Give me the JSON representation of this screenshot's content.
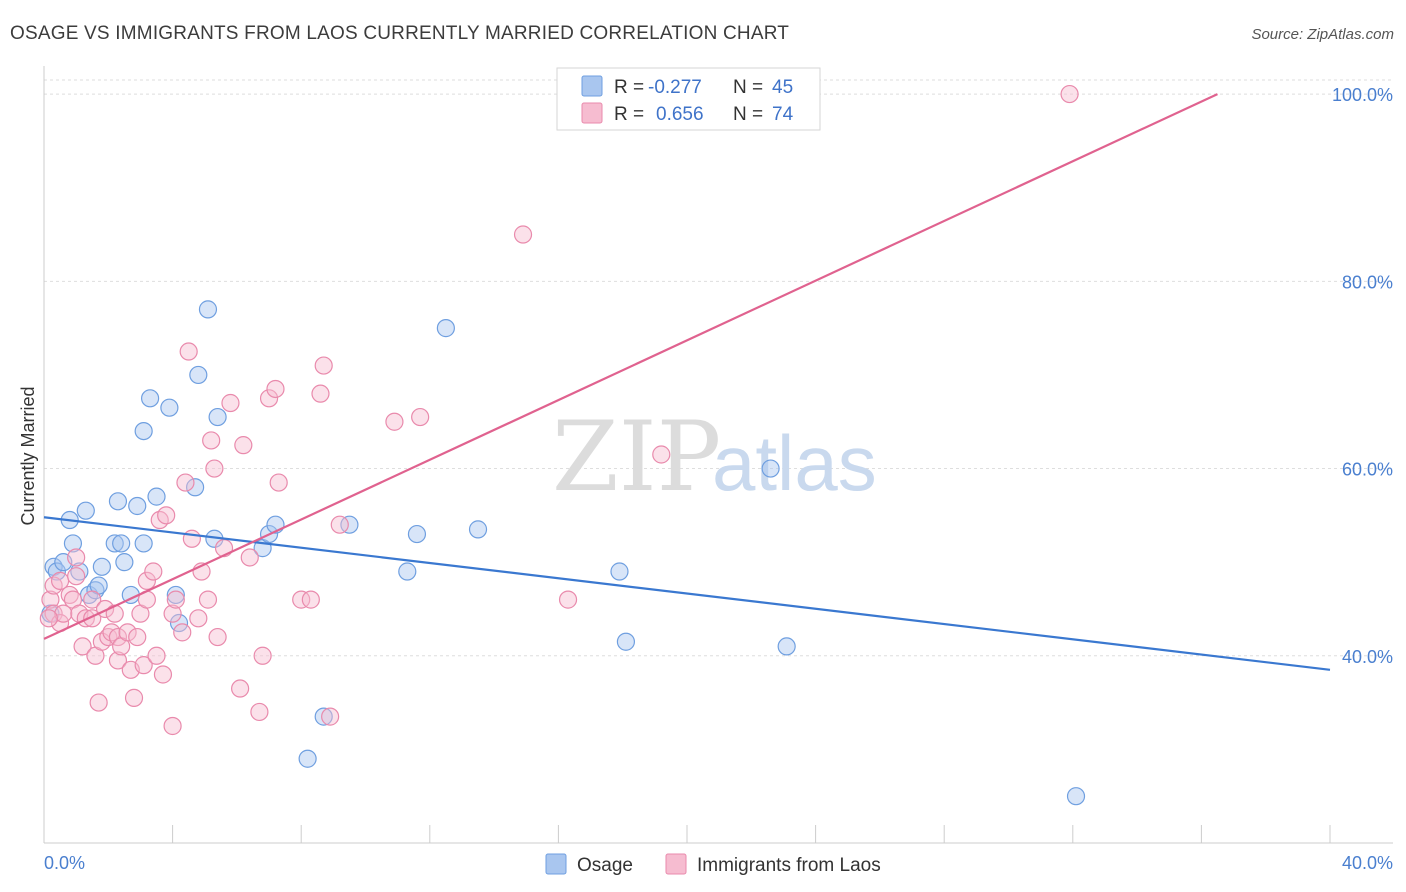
{
  "chart_data": {
    "type": "scatter",
    "title": "OSAGE VS IMMIGRANTS FROM LAOS CURRENTLY MARRIED CORRELATION CHART",
    "source": "Source: ZipAtlas.com",
    "ylabel": "Currently Married",
    "xlim": [
      0,
      40
    ],
    "ylim": [
      20,
      103
    ],
    "x_tick_labels": [
      "0.0%",
      "40.0%"
    ],
    "y_ticks": [
      {
        "value": 40,
        "label": "40.0%"
      },
      {
        "value": 60,
        "label": "60.0%"
      },
      {
        "value": 80,
        "label": "80.0%"
      },
      {
        "value": 100,
        "label": "100.0%"
      }
    ],
    "grid": true,
    "legend_position": "top-center",
    "watermark": {
      "zip": "ZIP",
      "atlas": "atlas"
    },
    "series": [
      {
        "name": "Osage",
        "color": "#a9c6ef",
        "edge_color": "#6f9fe0",
        "line_color": "#3a78d0",
        "stats": {
          "r_label": "R = ",
          "r_value": "-0.277",
          "n_label": "N = ",
          "n_value": "45"
        },
        "trend": {
          "x0": 0,
          "y0": 54.8,
          "x1": 40,
          "y1": 38.5
        },
        "points": [
          [
            0.2,
            44.5
          ],
          [
            0.3,
            49.5
          ],
          [
            0.4,
            49.0
          ],
          [
            0.6,
            50.0
          ],
          [
            0.8,
            54.5
          ],
          [
            0.9,
            52.0
          ],
          [
            1.1,
            49.0
          ],
          [
            1.3,
            55.5
          ],
          [
            1.4,
            46.5
          ],
          [
            1.6,
            47.0
          ],
          [
            1.7,
            47.5
          ],
          [
            1.8,
            49.5
          ],
          [
            2.2,
            52.0
          ],
          [
            2.3,
            56.5
          ],
          [
            2.4,
            52.0
          ],
          [
            2.5,
            50.0
          ],
          [
            2.7,
            46.5
          ],
          [
            2.9,
            56.0
          ],
          [
            3.1,
            64.0
          ],
          [
            3.1,
            52.0
          ],
          [
            3.3,
            67.5
          ],
          [
            3.5,
            57.0
          ],
          [
            3.9,
            66.5
          ],
          [
            4.1,
            46.5
          ],
          [
            4.2,
            43.5
          ],
          [
            4.7,
            58.0
          ],
          [
            4.8,
            70.0
          ],
          [
            5.1,
            77.0
          ],
          [
            5.3,
            52.5
          ],
          [
            5.4,
            65.5
          ],
          [
            6.8,
            51.5
          ],
          [
            7.0,
            53.0
          ],
          [
            7.2,
            54.0
          ],
          [
            8.2,
            29.0
          ],
          [
            8.7,
            33.5
          ],
          [
            9.5,
            54.0
          ],
          [
            11.3,
            49.0
          ],
          [
            11.6,
            53.0
          ],
          [
            12.5,
            75.0
          ],
          [
            13.5,
            53.5
          ],
          [
            17.9,
            49.0
          ],
          [
            18.1,
            41.5
          ],
          [
            22.6,
            60.0
          ],
          [
            23.1,
            41.0
          ],
          [
            32.1,
            25.0
          ]
        ]
      },
      {
        "name": "Immigrants from Laos",
        "color": "#f6bcd0",
        "edge_color": "#e98aac",
        "line_color": "#e0628f",
        "stats": {
          "r_label": "R = ",
          "r_value": "0.656",
          "n_label": "N = ",
          "n_value": "74"
        },
        "trend": {
          "x0": 0,
          "y0": 41.8,
          "x1": 36.5,
          "y1": 100
        },
        "points": [
          [
            0.2,
            46.0
          ],
          [
            0.3,
            44.5
          ],
          [
            0.3,
            47.5
          ],
          [
            0.5,
            43.5
          ],
          [
            0.5,
            48.0
          ],
          [
            0.6,
            44.5
          ],
          [
            0.8,
            46.5
          ],
          [
            0.9,
            46.0
          ],
          [
            1.0,
            48.5
          ],
          [
            1.0,
            50.5
          ],
          [
            1.1,
            44.5
          ],
          [
            1.2,
            41.0
          ],
          [
            1.3,
            44.0
          ],
          [
            1.5,
            46.0
          ],
          [
            1.5,
            44.0
          ],
          [
            1.6,
            40.0
          ],
          [
            1.7,
            35.0
          ],
          [
            1.8,
            41.5
          ],
          [
            1.9,
            45.0
          ],
          [
            2.0,
            42.0
          ],
          [
            2.1,
            42.5
          ],
          [
            2.2,
            44.5
          ],
          [
            2.3,
            39.5
          ],
          [
            2.3,
            42.0
          ],
          [
            2.4,
            41.0
          ],
          [
            2.6,
            42.5
          ],
          [
            2.7,
            38.5
          ],
          [
            2.8,
            35.5
          ],
          [
            2.9,
            42.0
          ],
          [
            3.0,
            44.5
          ],
          [
            3.1,
            39.0
          ],
          [
            3.2,
            48.0
          ],
          [
            3.2,
            46.0
          ],
          [
            3.4,
            49.0
          ],
          [
            3.5,
            40.0
          ],
          [
            3.6,
            54.5
          ],
          [
            3.7,
            38.0
          ],
          [
            3.8,
            55.0
          ],
          [
            4.0,
            44.5
          ],
          [
            4.0,
            32.5
          ],
          [
            4.1,
            46.0
          ],
          [
            4.3,
            42.5
          ],
          [
            4.4,
            58.5
          ],
          [
            4.5,
            72.5
          ],
          [
            4.6,
            52.5
          ],
          [
            4.8,
            44.0
          ],
          [
            4.9,
            49.0
          ],
          [
            5.1,
            46.0
          ],
          [
            5.2,
            63.0
          ],
          [
            5.3,
            60.0
          ],
          [
            5.4,
            42.0
          ],
          [
            5.6,
            51.5
          ],
          [
            5.8,
            67.0
          ],
          [
            6.1,
            36.5
          ],
          [
            6.2,
            62.5
          ],
          [
            6.4,
            50.5
          ],
          [
            6.7,
            34.0
          ],
          [
            6.8,
            40.0
          ],
          [
            7.0,
            67.5
          ],
          [
            7.2,
            68.5
          ],
          [
            7.3,
            58.5
          ],
          [
            8.0,
            46.0
          ],
          [
            8.3,
            46.0
          ],
          [
            8.6,
            68.0
          ],
          [
            8.7,
            71.0
          ],
          [
            8.9,
            33.5
          ],
          [
            9.2,
            54.0
          ],
          [
            10.9,
            65.0
          ],
          [
            11.7,
            65.5
          ],
          [
            14.9,
            85.0
          ],
          [
            16.3,
            46.0
          ],
          [
            19.2,
            61.5
          ],
          [
            31.9,
            100.0
          ],
          [
            0.15,
            44.0
          ]
        ]
      }
    ]
  }
}
